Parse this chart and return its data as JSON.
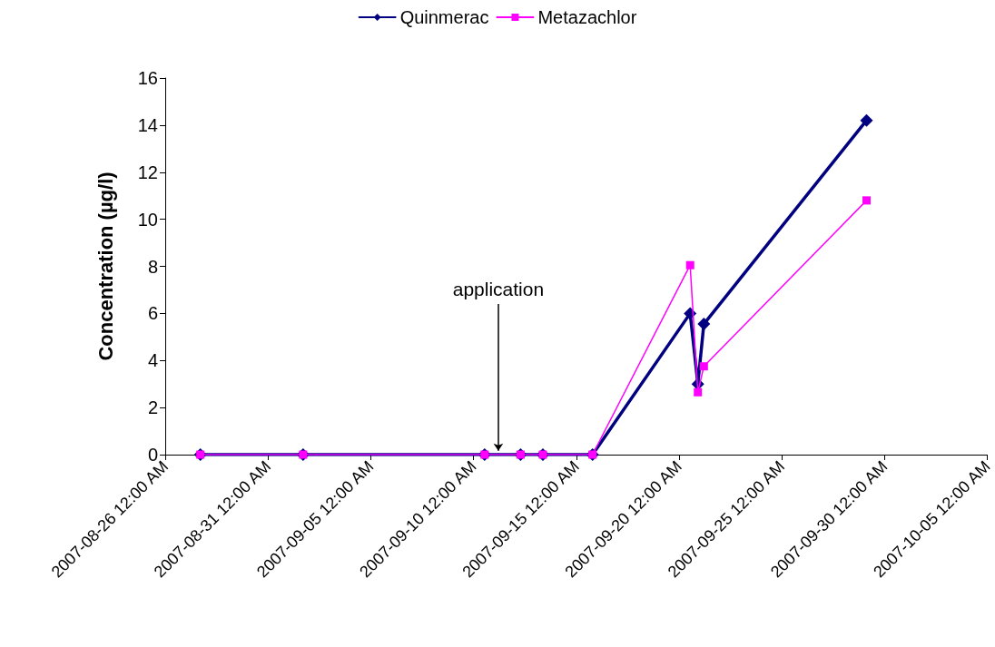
{
  "chart_data": {
    "type": "line",
    "ylabel": "Concentration (µg/l)",
    "x": [
      "2007-08-27T17:00",
      "2007-09-01T17:00",
      "2007-09-10T13:00",
      "2007-09-12T07:00",
      "2007-09-13T09:00",
      "2007-09-15T19:00",
      "2007-09-20T13:00",
      "2007-09-20T22:00",
      "2007-09-21T05:00",
      "2007-09-29T03:00"
    ],
    "series": [
      {
        "name": "Quinmerac",
        "color": "#000080",
        "marker": "diamond",
        "values": [
          0,
          0,
          0,
          0,
          0,
          0,
          6.0,
          3.0,
          5.55,
          14.2
        ]
      },
      {
        "name": "Metazachlor",
        "color": "#ff00ff",
        "marker": "square",
        "values": [
          0,
          0,
          0,
          0,
          0,
          0,
          8.05,
          2.65,
          3.75,
          10.8
        ]
      }
    ],
    "xlim": [
      "2007-08-26",
      "2007-10-05"
    ],
    "xticks": [
      {
        "value": "2007-08-26",
        "label": "2007-08-26 12:00 AM"
      },
      {
        "value": "2007-08-31",
        "label": "2007-08-31 12:00 AM"
      },
      {
        "value": "2007-09-05",
        "label": "2007-09-05 12:00 AM"
      },
      {
        "value": "2007-09-10",
        "label": "2007-09-10 12:00 AM"
      },
      {
        "value": "2007-09-15",
        "label": "2007-09-15 12:00 AM"
      },
      {
        "value": "2007-09-20",
        "label": "2007-09-20 12:00 AM"
      },
      {
        "value": "2007-09-25",
        "label": "2007-09-25 12:00 AM"
      },
      {
        "value": "2007-09-30",
        "label": "2007-09-30 12:00 AM"
      },
      {
        "value": "2007-10-05",
        "label": "2007-10-05 12:00 AM"
      }
    ],
    "ylim": [
      0,
      16
    ],
    "yticks": [
      0,
      2,
      4,
      6,
      8,
      10,
      12,
      14,
      16
    ],
    "annotations": [
      {
        "text": "application",
        "x": "2007-09-11T05:00",
        "y": 0
      }
    ],
    "grid": false,
    "legend": "top",
    "line_style": "solid"
  }
}
